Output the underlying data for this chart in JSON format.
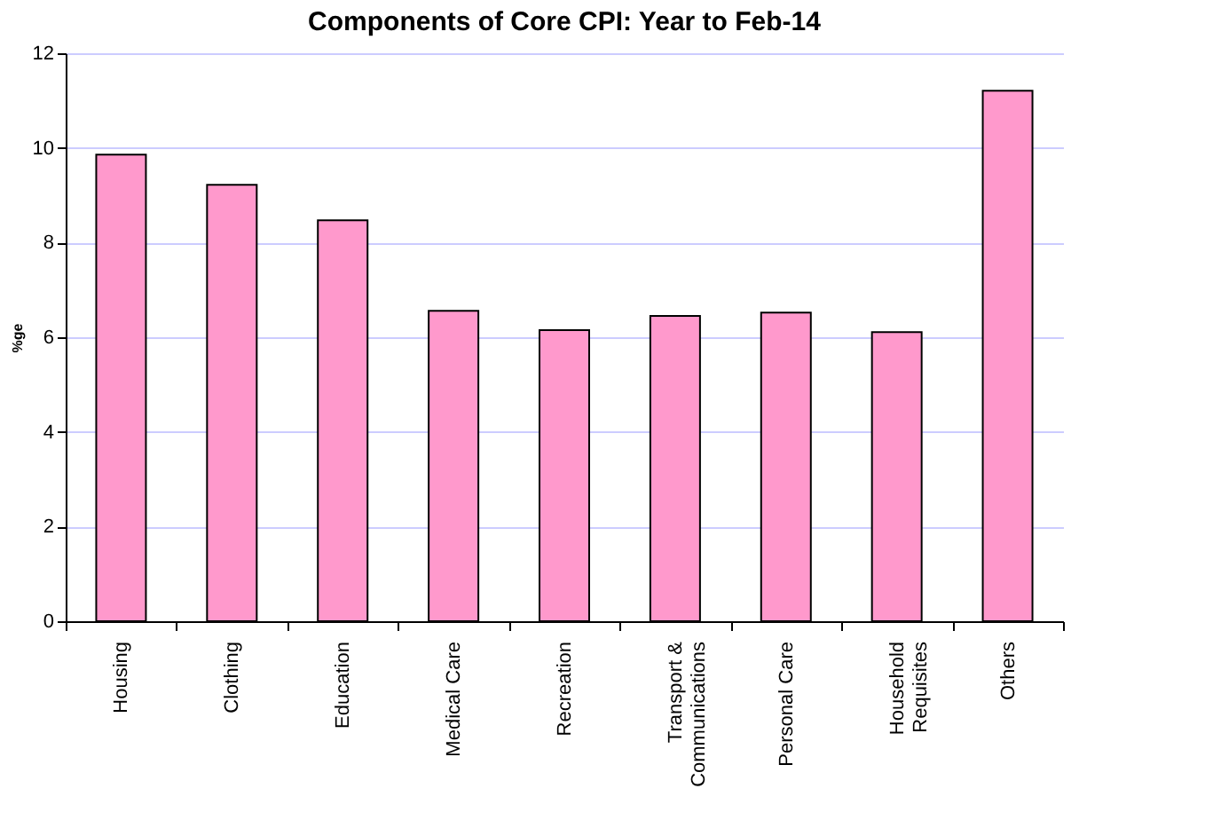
{
  "chart_data": {
    "type": "bar",
    "title": "Components of Core CPI: Year to Feb-14",
    "ylabel": "%ge",
    "categories": [
      "Housing",
      "Clothing",
      "Education",
      "Medical Care",
      "Recreation",
      "Transport & Communications",
      "Personal Care",
      "Household Requisites",
      "Others"
    ],
    "values": [
      9.86,
      9.22,
      8.47,
      6.56,
      6.15,
      6.45,
      6.52,
      6.11,
      11.21
    ],
    "color": "#ff99cc",
    "ylim": [
      0,
      12
    ],
    "yticks": [
      0,
      2,
      4,
      6,
      8,
      10,
      12
    ],
    "grid": "y"
  }
}
